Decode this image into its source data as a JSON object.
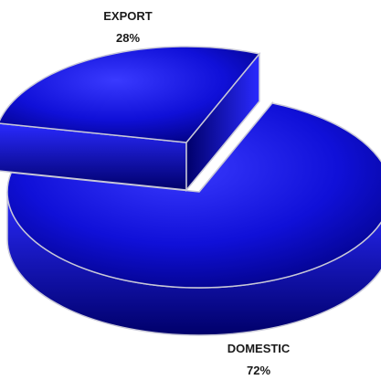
{
  "chart_data": {
    "type": "pie",
    "title": "",
    "slices": [
      {
        "label": "EXPORT",
        "value": 28,
        "value_label": "28%",
        "exploded": true
      },
      {
        "label": "DOMESTIC",
        "value": 72,
        "value_label": "72%",
        "exploded": false
      }
    ],
    "colors": {
      "face_light": "#3a3aff",
      "face_mid": "#1010d8",
      "face_dark": "#00007a",
      "side_light": "#2a2aff",
      "side_dark": "#00006a",
      "edge": "#c8c8d8"
    },
    "style": "3d-exploded",
    "legend": "none"
  }
}
